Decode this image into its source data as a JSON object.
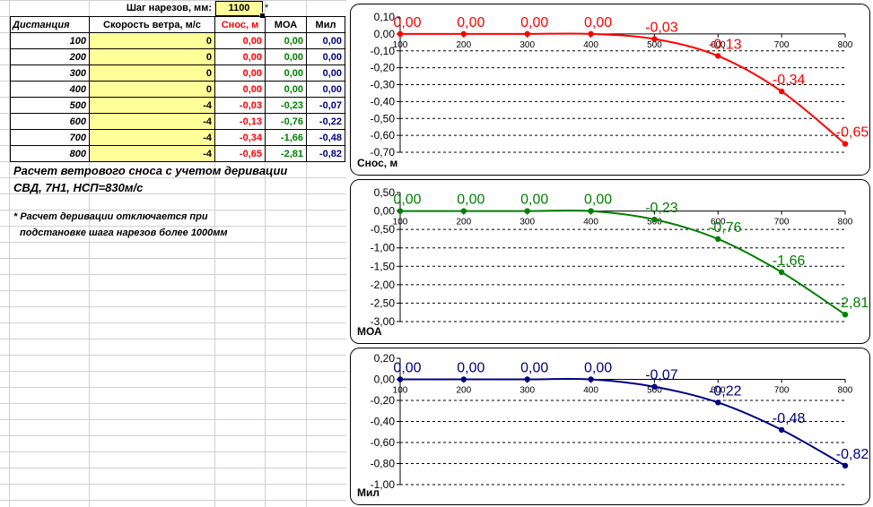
{
  "top": {
    "pitch_label": "Шаг нарезов, мм:",
    "pitch_value": "1100",
    "asterisk": "*"
  },
  "table": {
    "headers": [
      "Дистанция",
      "Скорость ветра, м/с",
      "Снос, м",
      "МОА",
      "Мил"
    ],
    "rows": [
      {
        "dist": "100",
        "wind": "0",
        "drift": "0,00",
        "moa": "0,00",
        "mil": "0,00"
      },
      {
        "dist": "200",
        "wind": "0",
        "drift": "0,00",
        "moa": "0,00",
        "mil": "0,00"
      },
      {
        "dist": "300",
        "wind": "0",
        "drift": "0,00",
        "moa": "0,00",
        "mil": "0,00"
      },
      {
        "dist": "400",
        "wind": "0",
        "drift": "0,00",
        "moa": "0,00",
        "mil": "0,00"
      },
      {
        "dist": "500",
        "wind": "-4",
        "drift": "-0,03",
        "moa": "-0,23",
        "mil": "-0,07"
      },
      {
        "dist": "600",
        "wind": "-4",
        "drift": "-0,13",
        "moa": "-0,76",
        "mil": "-0,22"
      },
      {
        "dist": "700",
        "wind": "-4",
        "drift": "-0,34",
        "moa": "-1,66",
        "mil": "-0,48"
      },
      {
        "dist": "800",
        "wind": "-4",
        "drift": "-0,65",
        "moa": "-2,81",
        "mil": "-0,82"
      }
    ]
  },
  "notes": {
    "line1": "Расчет ветрового сноса с учетом деривации",
    "line2": "СВД, 7Н1, НСП=830м/с",
    "footnote1": "* Расчет деривации отключается при",
    "footnote2": "подстановке шага нарезов более 1000мм"
  },
  "colors": {
    "drift": "#ff0000",
    "moa": "#008000",
    "mil": "#000080",
    "yellow": "#ffff99"
  },
  "chart_data": [
    {
      "type": "line",
      "ylabel": "Снос, м",
      "x": [
        100,
        200,
        300,
        400,
        500,
        600,
        700,
        800
      ],
      "y": [
        0,
        0,
        0,
        0,
        -0.03,
        -0.13,
        -0.34,
        -0.65
      ],
      "labels": [
        "0,00",
        "0,00",
        "0,00",
        "0,00",
        "-0,03",
        "-0,13",
        "-0,34",
        "-0,65"
      ],
      "ylim": [
        -0.7,
        0.1
      ],
      "yticks": [
        "0,10",
        "0,00",
        "-0,10",
        "-0,20",
        "-0,30",
        "-0,40",
        "-0,50",
        "-0,60",
        "-0,70"
      ],
      "xticks": [
        "100",
        "200",
        "300",
        "400",
        "500",
        "600",
        "700",
        "800"
      ],
      "color": "#ff0000"
    },
    {
      "type": "line",
      "ylabel": "МОА",
      "x": [
        100,
        200,
        300,
        400,
        500,
        600,
        700,
        800
      ],
      "y": [
        0,
        0,
        0,
        0,
        -0.23,
        -0.76,
        -1.66,
        -2.81
      ],
      "labels": [
        "0,00",
        "0,00",
        "0,00",
        "0,00",
        "-0,23",
        "-0,76",
        "-1,66",
        "-2,81"
      ],
      "ylim": [
        -3.0,
        0.5
      ],
      "yticks": [
        "0,50",
        "0,00",
        "-0,50",
        "-1,00",
        "-1,50",
        "-2,00",
        "-2,50",
        "-3,00"
      ],
      "xticks": [
        "100",
        "200",
        "300",
        "400",
        "500",
        "600",
        "700",
        "800"
      ],
      "color": "#008000"
    },
    {
      "type": "line",
      "ylabel": "Мил",
      "x": [
        100,
        200,
        300,
        400,
        500,
        600,
        700,
        800
      ],
      "y": [
        0,
        0,
        0,
        0,
        -0.07,
        -0.22,
        -0.48,
        -0.82
      ],
      "labels": [
        "0,00",
        "0,00",
        "0,00",
        "0,00",
        "-0,07",
        "-0,22",
        "-0,48",
        "-0,82"
      ],
      "ylim": [
        -1.0,
        0.2
      ],
      "yticks": [
        "0,20",
        "0,00",
        "-0,20",
        "-0,40",
        "-0,60",
        "-0,80",
        "-1,00"
      ],
      "xticks": [
        "100",
        "200",
        "300",
        "400",
        "500",
        "600",
        "700",
        "800"
      ],
      "color": "#000080"
    }
  ]
}
